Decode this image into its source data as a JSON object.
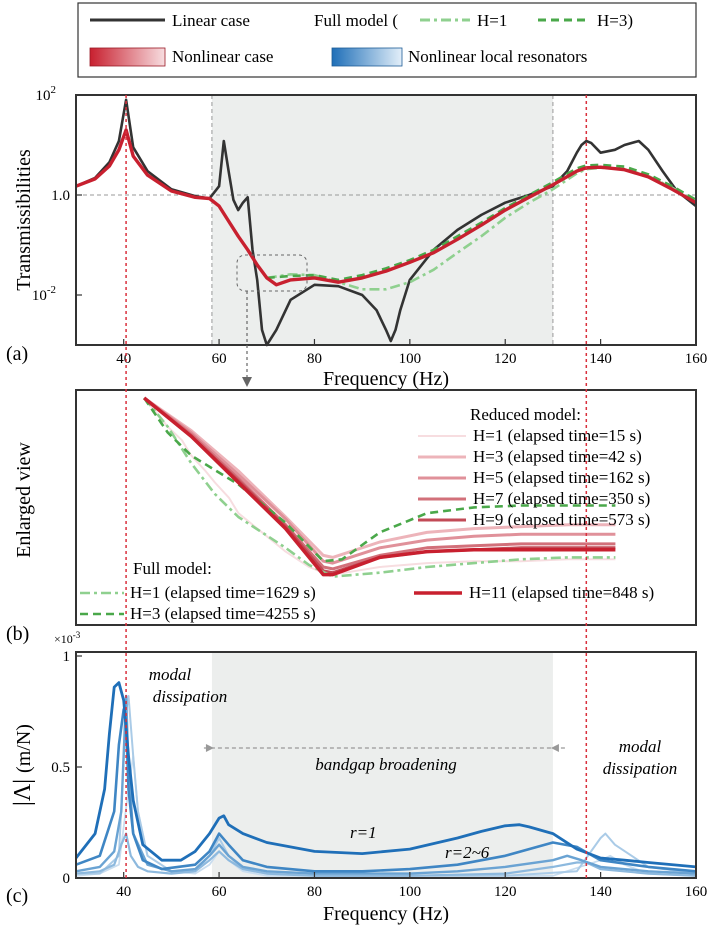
{
  "legend": {
    "linear": "Linear case",
    "full_model": "Full model (",
    "h1": "H=1",
    "h3": "H=3)",
    "nonlinear": "Nonlinear case",
    "nonlinear_local": "Nonlinear local resonators"
  },
  "colors": {
    "linear": "#333333",
    "nonlinear": "#c8202f",
    "full_green": "#4aa84a",
    "full_green_light": "#8fd08f",
    "blue_dark": "#1f6fb8",
    "blue_light": "#bcd8ee",
    "band_fill": "#eceeed"
  },
  "panel_a": {
    "label": "(a)",
    "ylabel": "Transmissibilities",
    "xlabel": "Frequency (Hz)",
    "xticks": [
      "40",
      "60",
      "80",
      "100",
      "120",
      "140",
      "160"
    ],
    "yticks": [
      {
        "base": "10",
        "exp": "2"
      },
      {
        "base": "1.0",
        "exp": ""
      },
      {
        "base": "10",
        "exp": "-2"
      }
    ]
  },
  "panel_b": {
    "label": "(b)",
    "ylabel": "Enlarged view",
    "reduced_title": "Reduced model:",
    "full_title": "Full model:",
    "reduced": [
      {
        "label": "H=1 (elapsed time=15 s)",
        "color": "#f7dde0",
        "width": 2
      },
      {
        "label": "H=3 (elapsed time=42 s)",
        "color": "#edb4ba",
        "width": 3
      },
      {
        "label": "H=5 (elapsed time=162 s)",
        "color": "#e0919a",
        "width": 3
      },
      {
        "label": "H=7 (elapsed time=350 s)",
        "color": "#d2707a",
        "width": 3
      },
      {
        "label": "H=9 (elapsed time=573 s)",
        "color": "#c24a56",
        "width": 3
      },
      {
        "label": "H=11 (elapsed time=848 s)",
        "color": "#c8202f",
        "width": 3.5
      }
    ],
    "full": [
      {
        "label": "H=1 (elapsed time=1629 s)",
        "dash": "10 4 3 4",
        "color": "#8fd08f"
      },
      {
        "label": "H=3 (elapsed time=4255 s)",
        "dash": "8 5",
        "color": "#4aa84a"
      }
    ]
  },
  "panel_c": {
    "label": "(c)",
    "ylabel": "|Λ| (m/N)",
    "ylabel_main": "|Λ|",
    "ylabel_unit": "(m/N)",
    "scale": "×10-3",
    "scale_base": "×10",
    "scale_exp": "-3",
    "xlabel": "Frequency (Hz)",
    "xticks": [
      "40",
      "60",
      "80",
      "100",
      "120",
      "140",
      "160"
    ],
    "yticks": [
      "1",
      "0.5",
      "0"
    ],
    "ann_modal_left_1": "modal",
    "ann_modal_left_2": "dissipation",
    "ann_bandgap": "bandgap broadening",
    "ann_r1": "r=1",
    "ann_r26": "r=2~6",
    "ann_modal_right_1": "modal",
    "ann_modal_right_2": "dissipation"
  },
  "chart_data": [
    {
      "type": "line",
      "xlabel": "Frequency (Hz)",
      "ylabel": "Transmissibilities",
      "xlim": [
        30,
        160
      ],
      "ylim": [
        0.001,
        100
      ],
      "yscale": "log",
      "bandgap": [
        58.5,
        130
      ],
      "markers": [
        40.5,
        137
      ],
      "series": [
        {
          "name": "Linear case",
          "x": [
            30,
            34,
            37,
            39,
            40.5,
            42,
            45,
            50,
            55,
            58,
            60,
            61,
            62,
            63,
            64,
            65,
            66,
            67,
            68,
            69,
            70,
            72,
            75,
            80,
            85,
            90,
            93,
            95,
            96,
            97,
            98,
            100,
            105,
            110,
            115,
            120,
            125,
            130,
            133,
            135,
            136,
            137,
            138,
            140,
            143,
            145,
            148,
            150,
            153,
            156,
            160
          ],
          "y": [
            1.5,
            2.2,
            4.5,
            12,
            80,
            9,
            3,
            1.3,
            0.95,
            0.85,
            1.5,
            12,
            3,
            0.8,
            0.5,
            0.7,
            0.9,
            0.08,
            0.02,
            0.002,
            0.001,
            0.002,
            0.008,
            0.016,
            0.015,
            0.01,
            0.005,
            0.002,
            0.0012,
            0.002,
            0.005,
            0.02,
            0.08,
            0.2,
            0.4,
            0.7,
            1.0,
            1.5,
            3,
            7,
            10,
            12,
            11,
            7,
            8,
            10,
            12,
            8,
            3,
            1.2,
            0.6
          ]
        },
        {
          "name": "Nonlinear case",
          "x": [
            30,
            34,
            37,
            39,
            40.5,
            42,
            45,
            50,
            55,
            58,
            60,
            62,
            64,
            66,
            68,
            70,
            72,
            75,
            80,
            85,
            90,
            95,
            100,
            105,
            110,
            115,
            120,
            125,
            130,
            135,
            137,
            140,
            145,
            150,
            155,
            160
          ],
          "y": [
            1.5,
            2.1,
            3.8,
            8,
            20,
            6,
            2.5,
            1.2,
            0.9,
            0.85,
            0.6,
            0.3,
            0.15,
            0.08,
            0.04,
            0.022,
            0.016,
            0.02,
            0.022,
            0.018,
            0.022,
            0.03,
            0.045,
            0.07,
            0.13,
            0.25,
            0.5,
            0.9,
            1.6,
            3.0,
            3.5,
            3.6,
            3.2,
            2.3,
            1.3,
            0.7
          ]
        },
        {
          "name": "H=1",
          "x": [
            70,
            75,
            80,
            85,
            90,
            95,
            100,
            105,
            110,
            115,
            120,
            125,
            130,
            135,
            137,
            140,
            145,
            150,
            155,
            160
          ],
          "y": [
            0.022,
            0.026,
            0.025,
            0.018,
            0.013,
            0.013,
            0.018,
            0.032,
            0.07,
            0.15,
            0.35,
            0.7,
            1.3,
            2.7,
            3.3,
            3.5,
            3.3,
            2.4,
            1.4,
            0.75
          ]
        },
        {
          "name": "H=3",
          "x": [
            70,
            75,
            80,
            85,
            90,
            95,
            100,
            105,
            110,
            115,
            120,
            125,
            130,
            135,
            137,
            140,
            145,
            150,
            155,
            160
          ],
          "y": [
            0.022,
            0.024,
            0.025,
            0.02,
            0.025,
            0.034,
            0.05,
            0.08,
            0.15,
            0.28,
            0.55,
            1.0,
            1.8,
            3.4,
            3.9,
            4.0,
            3.7,
            2.6,
            1.5,
            0.8
          ]
        }
      ]
    },
    {
      "type": "line",
      "ylabel": "Enlarged view",
      "xlim": [
        0,
        1
      ],
      "ylim": [
        0,
        1
      ],
      "series": [
        {
          "name": "H=1 (elapsed time=15 s)",
          "x": [
            0,
            0.05,
            0.08,
            0.1,
            0.13,
            0.15,
            0.18,
            0.2,
            0.25,
            0.3,
            0.35,
            0.38,
            0.4,
            0.45,
            0.5,
            0.6,
            0.7,
            0.8,
            0.9,
            1
          ],
          "y": [
            1,
            0.85,
            0.78,
            0.7,
            0.62,
            0.56,
            0.48,
            0.4,
            0.3,
            0.2,
            0.12,
            0.09,
            0.08,
            0.1,
            0.12,
            0.14,
            0.15,
            0.15,
            0.16,
            0.16
          ]
        },
        {
          "name": "H=3 (elapsed time=42 s)",
          "x": [
            0,
            0.1,
            0.2,
            0.3,
            0.38,
            0.4,
            0.5,
            0.6,
            0.7,
            0.8,
            0.9,
            1
          ],
          "y": [
            1,
            0.83,
            0.62,
            0.38,
            0.18,
            0.17,
            0.25,
            0.3,
            0.32,
            0.33,
            0.34,
            0.34
          ]
        },
        {
          "name": "H=5 (elapsed time=162 s)",
          "x": [
            0,
            0.1,
            0.2,
            0.3,
            0.38,
            0.4,
            0.5,
            0.6,
            0.7,
            0.8,
            0.9,
            1
          ],
          "y": [
            1,
            0.82,
            0.6,
            0.37,
            0.15,
            0.14,
            0.22,
            0.26,
            0.28,
            0.29,
            0.29,
            0.29
          ]
        },
        {
          "name": "H=7 (elapsed time=350 s)",
          "x": [
            0,
            0.1,
            0.2,
            0.3,
            0.38,
            0.4,
            0.5,
            0.6,
            0.7,
            0.8,
            0.9,
            1
          ],
          "y": [
            1,
            0.81,
            0.58,
            0.34,
            0.12,
            0.11,
            0.18,
            0.22,
            0.23,
            0.24,
            0.24,
            0.24
          ]
        },
        {
          "name": "H=9 (elapsed time=573 s)",
          "x": [
            0,
            0.1,
            0.2,
            0.3,
            0.38,
            0.4,
            0.5,
            0.6,
            0.7,
            0.8,
            0.9,
            1
          ],
          "y": [
            1,
            0.8,
            0.57,
            0.33,
            0.1,
            0.09,
            0.17,
            0.2,
            0.21,
            0.22,
            0.22,
            0.22
          ]
        },
        {
          "name": "H=11 (elapsed time=848 s)",
          "x": [
            0,
            0.1,
            0.2,
            0.3,
            0.38,
            0.4,
            0.5,
            0.6,
            0.7,
            0.8,
            0.9,
            1
          ],
          "y": [
            1,
            0.8,
            0.56,
            0.32,
            0.08,
            0.08,
            0.17,
            0.2,
            0.21,
            0.21,
            0.21,
            0.21
          ]
        },
        {
          "name": "H=1 (elapsed time=1629 s)",
          "x": [
            0,
            0.05,
            0.1,
            0.15,
            0.2,
            0.25,
            0.3,
            0.35,
            0.4,
            0.5,
            0.6,
            0.7,
            0.8,
            0.9,
            1
          ],
          "y": [
            1,
            0.85,
            0.66,
            0.5,
            0.38,
            0.3,
            0.22,
            0.13,
            0.07,
            0.09,
            0.12,
            0.14,
            0.16,
            0.17,
            0.17
          ]
        },
        {
          "name": "H=3 (elapsed time=4255 s)",
          "x": [
            0,
            0.05,
            0.1,
            0.2,
            0.3,
            0.38,
            0.42,
            0.5,
            0.6,
            0.7,
            0.8,
            0.9,
            1
          ],
          "y": [
            1,
            0.82,
            0.7,
            0.55,
            0.35,
            0.15,
            0.16,
            0.3,
            0.4,
            0.43,
            0.44,
            0.44,
            0.44
          ]
        }
      ]
    },
    {
      "type": "line",
      "xlabel": "Frequency (Hz)",
      "ylabel": "|Λ| (m/N)",
      "xlim": [
        30,
        160
      ],
      "ylim": [
        0,
        1
      ],
      "bandgap": [
        58.5,
        130
      ],
      "series": [
        {
          "name": "r=1",
          "x": [
            30,
            34,
            36,
            37,
            38,
            39,
            40,
            41,
            42,
            44,
            48,
            52,
            55,
            58,
            60,
            61,
            62,
            65,
            70,
            80,
            90,
            100,
            110,
            115,
            120,
            123,
            125,
            130,
            135,
            140,
            145,
            150,
            160
          ],
          "y": [
            0.09,
            0.2,
            0.4,
            0.65,
            0.86,
            0.88,
            0.8,
            0.55,
            0.35,
            0.15,
            0.08,
            0.08,
            0.12,
            0.2,
            0.27,
            0.28,
            0.24,
            0.2,
            0.16,
            0.12,
            0.11,
            0.13,
            0.18,
            0.21,
            0.235,
            0.24,
            0.23,
            0.2,
            0.13,
            0.09,
            0.08,
            0.07,
            0.05
          ]
        },
        {
          "name": "r=2",
          "x": [
            30,
            35,
            38,
            39,
            40,
            40.5,
            41,
            42,
            44,
            48,
            55,
            58,
            60,
            62,
            65,
            70,
            80,
            90,
            100,
            110,
            120,
            130,
            135,
            140,
            150,
            160
          ],
          "y": [
            0.06,
            0.1,
            0.3,
            0.6,
            0.76,
            0.7,
            0.4,
            0.2,
            0.08,
            0.04,
            0.06,
            0.12,
            0.2,
            0.15,
            0.08,
            0.05,
            0.03,
            0.03,
            0.04,
            0.06,
            0.1,
            0.16,
            0.14,
            0.08,
            0.05,
            0.03
          ]
        },
        {
          "name": "r=3",
          "x": [
            30,
            35,
            38,
            39.5,
            40.5,
            41,
            42,
            45,
            50,
            55,
            58,
            60,
            62,
            65,
            70,
            80,
            90,
            100,
            110,
            120,
            130,
            133,
            136,
            140,
            150,
            160
          ],
          "y": [
            0.03,
            0.05,
            0.12,
            0.3,
            0.82,
            0.5,
            0.2,
            0.06,
            0.03,
            0.04,
            0.1,
            0.15,
            0.1,
            0.05,
            0.03,
            0.02,
            0.02,
            0.02,
            0.03,
            0.05,
            0.08,
            0.1,
            0.08,
            0.05,
            0.03,
            0.02
          ]
        },
        {
          "name": "r=4",
          "x": [
            30,
            35,
            38,
            39.5,
            40.5,
            41.5,
            43,
            45,
            50,
            55,
            58,
            60,
            62,
            65,
            70,
            80,
            100,
            120,
            130,
            135,
            137,
            140,
            150,
            160
          ],
          "y": [
            0.02,
            0.03,
            0.06,
            0.15,
            0.2,
            0.1,
            0.05,
            0.03,
            0.02,
            0.03,
            0.08,
            0.12,
            0.08,
            0.04,
            0.02,
            0.01,
            0.01,
            0.02,
            0.05,
            0.07,
            0.07,
            0.04,
            0.02,
            0.01
          ]
        },
        {
          "name": "r=5",
          "x": [
            30,
            35,
            39,
            40.5,
            41,
            42,
            43,
            45,
            50,
            55,
            58,
            60,
            62,
            65,
            70,
            80,
            100,
            120,
            135,
            140,
            141,
            143,
            150,
            160
          ],
          "y": [
            0.02,
            0.02,
            0.1,
            0.75,
            0.82,
            0.55,
            0.3,
            0.1,
            0.03,
            0.03,
            0.1,
            0.18,
            0.1,
            0.04,
            0.02,
            0.01,
            0.01,
            0.01,
            0.03,
            0.18,
            0.2,
            0.15,
            0.05,
            0.02
          ]
        },
        {
          "name": "r=6",
          "x": [
            30,
            35,
            39,
            41,
            42,
            43,
            45,
            50,
            55,
            58,
            60,
            62,
            65,
            70,
            100,
            130,
            140,
            142,
            145,
            150,
            160
          ],
          "y": [
            0.01,
            0.02,
            0.06,
            0.4,
            0.55,
            0.3,
            0.1,
            0.03,
            0.02,
            0.06,
            0.12,
            0.08,
            0.03,
            0.01,
            0.01,
            0.01,
            0.08,
            0.1,
            0.06,
            0.02,
            0.01
          ]
        }
      ]
    }
  ]
}
